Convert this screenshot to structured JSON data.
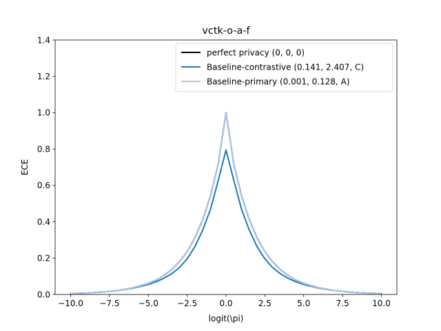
{
  "chart_data": {
    "type": "line",
    "title": "vctk-o-a-f",
    "xlabel": "logit(\\pi)",
    "ylabel": "ECE",
    "xlim": [
      -11.0,
      11.0
    ],
    "ylim": [
      0.0,
      1.4
    ],
    "xticks": [
      -10.0,
      -7.5,
      -5.0,
      -2.5,
      0.0,
      2.5,
      5.0,
      7.5,
      10.0
    ],
    "xtick_labels": [
      "−10.0",
      "−7.5",
      "−5.0",
      "−2.5",
      "0.0",
      "2.5",
      "5.0",
      "7.5",
      "10.0"
    ],
    "yticks": [
      0.0,
      0.2,
      0.4,
      0.6,
      0.8,
      1.0,
      1.2,
      1.4
    ],
    "ytick_labels": [
      "0.0",
      "0.2",
      "0.4",
      "0.6",
      "0.8",
      "1.0",
      "1.2",
      "1.4"
    ],
    "grid": false,
    "legend_position": "top-right",
    "x": [
      -10,
      -9,
      -8,
      -7,
      -6,
      -5,
      -4.5,
      -4,
      -3.5,
      -3,
      -2.5,
      -2,
      -1.5,
      -1,
      -0.5,
      0,
      0.5,
      1,
      1.5,
      2,
      2.5,
      3,
      3.5,
      4,
      4.5,
      5,
      6,
      7,
      8,
      9,
      10
    ],
    "series": [
      {
        "name": "perfect privacy (0, 0, 0)",
        "color": "#000000",
        "values": [
          0.0045,
          0.0076,
          0.0128,
          0.0215,
          0.0363,
          0.061,
          0.079,
          0.104,
          0.136,
          0.179,
          0.235,
          0.311,
          0.41,
          0.541,
          0.716,
          0.9999,
          0.716,
          0.541,
          0.41,
          0.311,
          0.235,
          0.179,
          0.136,
          0.104,
          0.079,
          0.061,
          0.0363,
          0.0215,
          0.0128,
          0.0076,
          0.0045
        ]
      },
      {
        "name": "Baseline-contrastive (0.141, 2.407, C)",
        "color": "#1f77b4",
        "values": [
          0.0045,
          0.0076,
          0.0126,
          0.0207,
          0.034,
          0.055,
          0.07,
          0.089,
          0.114,
          0.148,
          0.196,
          0.263,
          0.354,
          0.468,
          0.628,
          0.795,
          0.628,
          0.468,
          0.354,
          0.263,
          0.196,
          0.148,
          0.114,
          0.089,
          0.07,
          0.055,
          0.034,
          0.0207,
          0.0126,
          0.0076,
          0.0045
        ]
      },
      {
        "name": "Baseline-primary (0.001, 0.128, A)",
        "color": "#aec7e8",
        "values": [
          0.0045,
          0.0076,
          0.0128,
          0.0214,
          0.0361,
          0.0606,
          0.0787,
          0.1034,
          0.1352,
          0.178,
          0.2337,
          0.3095,
          0.4084,
          0.5393,
          0.7146,
          0.998,
          0.7146,
          0.5393,
          0.4084,
          0.3095,
          0.2337,
          0.178,
          0.1352,
          0.1034,
          0.0787,
          0.0606,
          0.0361,
          0.0214,
          0.0128,
          0.0076,
          0.0045
        ]
      }
    ]
  }
}
